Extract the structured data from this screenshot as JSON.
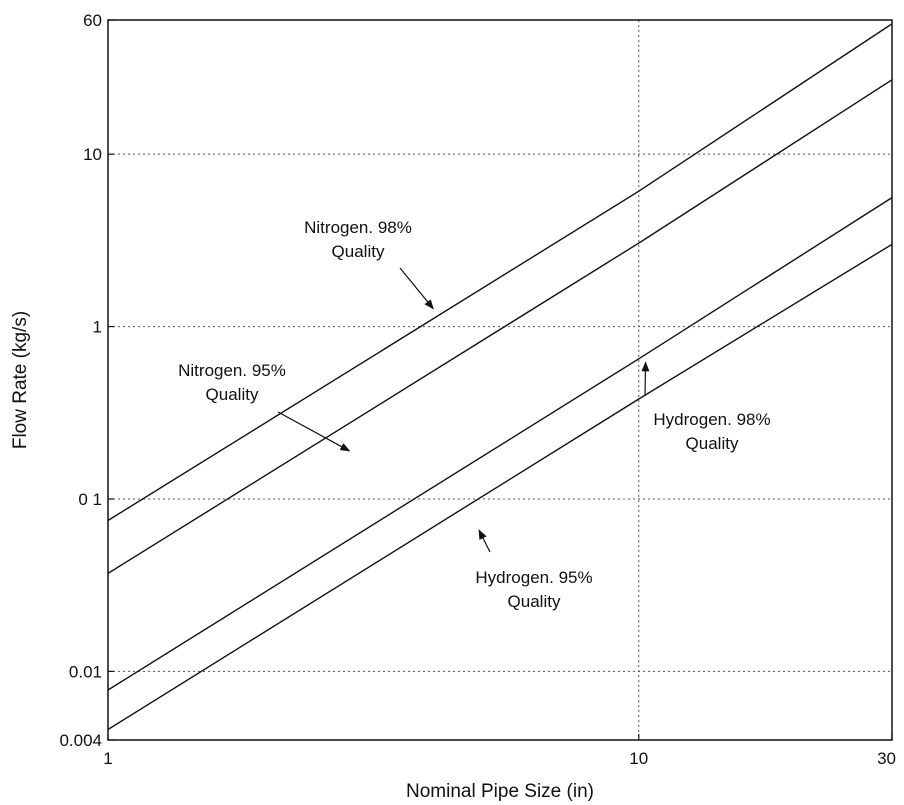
{
  "chart_data": {
    "type": "line",
    "title": "",
    "xlabel": "Nominal Pipe Size  (in)",
    "ylabel": "Flow Rate (kg/s)",
    "x_scale": "log",
    "y_scale": "log",
    "xlim": [
      1,
      30
    ],
    "ylim": [
      0.004,
      60
    ],
    "grid": "dotted at major ticks",
    "x_ticks": [
      {
        "value": 1,
        "label": "1"
      },
      {
        "value": 10,
        "label": "10"
      },
      {
        "value": 30,
        "label": "30"
      }
    ],
    "y_ticks": [
      {
        "value": 0.004,
        "label": "0.004"
      },
      {
        "value": 0.01,
        "label": "0.01"
      },
      {
        "value": 0.1,
        "label": "0 1"
      },
      {
        "value": 1,
        "label": "1"
      },
      {
        "value": 10,
        "label": "10"
      },
      {
        "value": 60,
        "label": "60"
      }
    ],
    "series": [
      {
        "points": [
          [
            1,
            0.075
          ],
          [
            10,
            6.1
          ],
          [
            30,
            57
          ]
        ]
      },
      {
        "points": [
          [
            1,
            0.037
          ],
          [
            10,
            3.05
          ],
          [
            30,
            27
          ]
        ]
      },
      {
        "points": [
          [
            1,
            0.0078
          ],
          [
            10,
            0.65
          ],
          [
            30,
            5.6
          ]
        ]
      },
      {
        "points": [
          [
            1,
            0.0046
          ],
          [
            10,
            0.38
          ],
          [
            30,
            3.0
          ]
        ]
      }
    ],
    "annotations": [
      {
        "lines": [
          "Nitrogen. 98%",
          "Quality"
        ],
        "arrow_to": [
          4.1,
          1.27
        ]
      },
      {
        "lines": [
          "Nitrogen. 95%",
          "Quality"
        ],
        "arrow_to": [
          2.85,
          0.19
        ]
      },
      {
        "lines": [
          "Hydrogen. 98%",
          "Quality"
        ],
        "arrow_to": [
          10.3,
          0.62
        ]
      },
      {
        "lines": [
          "Hydrogen. 95%",
          "Quality"
        ],
        "arrow_to": [
          5.0,
          0.066
        ]
      }
    ]
  }
}
